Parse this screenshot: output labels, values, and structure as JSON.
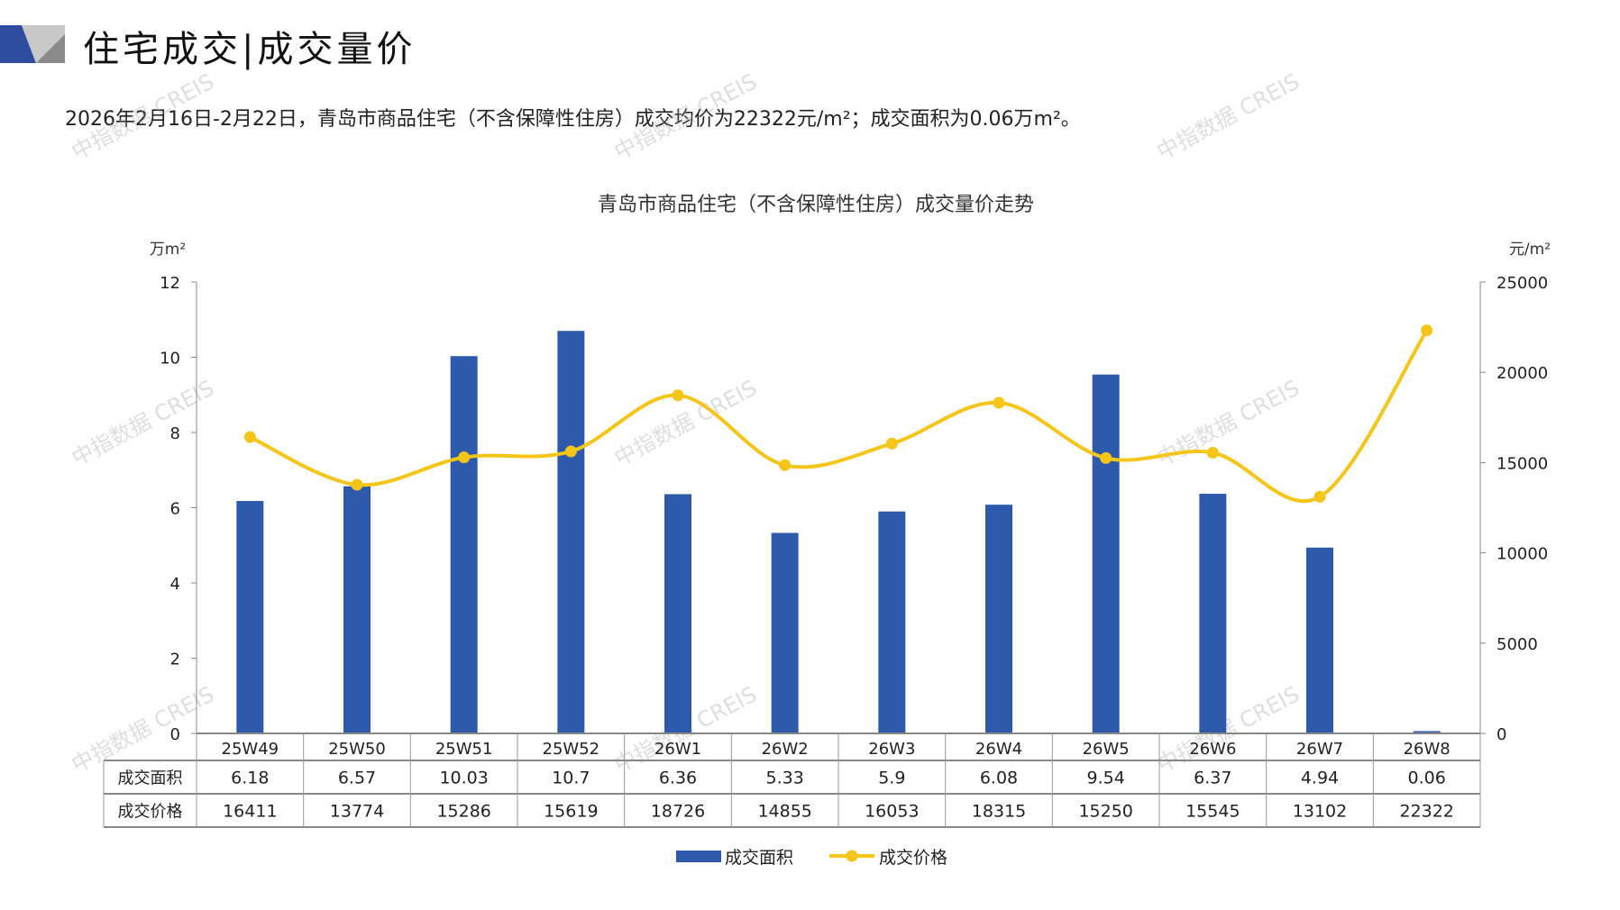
{
  "header": {
    "title": "住宅成交|成交量价",
    "summary": "2026年2月16日-2月22日，青岛市商品住宅（不含保障性住房）成交均价为22322元/m²；成交面积为0.06万m²。"
  },
  "watermark": "中指数据 CREIS",
  "colors": {
    "bar": "#2E5AAC",
    "line": "#F5C518",
    "logo_blue": "#2E4DA0",
    "logo_gray": "#9A9A9A"
  },
  "chart_data": {
    "type": "bar+line",
    "title": "青岛市商品住宅（不含保障性住房）成交量价走势",
    "categories": [
      "25W49",
      "25W50",
      "25W51",
      "25W52",
      "26W1",
      "26W2",
      "26W3",
      "26W4",
      "26W5",
      "26W6",
      "26W7",
      "26W8"
    ],
    "y_left": {
      "unit": "万m²",
      "range": [
        0,
        12
      ],
      "ticks": [
        0,
        2,
        4,
        6,
        8,
        10,
        12
      ]
    },
    "y_right": {
      "unit": "元/m²",
      "range": [
        0,
        25000
      ],
      "ticks": [
        0,
        5000,
        10000,
        15000,
        20000,
        25000
      ]
    },
    "series": [
      {
        "name": "成交面积",
        "type": "bar",
        "axis": "left",
        "values": [
          6.18,
          6.57,
          10.03,
          10.7,
          6.36,
          5.33,
          5.9,
          6.08,
          9.54,
          6.37,
          4.94,
          0.06
        ]
      },
      {
        "name": "成交价格",
        "type": "line",
        "axis": "right",
        "values": [
          16411,
          13774,
          15286,
          15619,
          18726,
          14855,
          16053,
          18315,
          15250,
          15545,
          13102,
          22322
        ]
      }
    ],
    "table": {
      "rows": [
        {
          "label": "成交面积",
          "values": [
            "6.18",
            "6.57",
            "10.03",
            "10.7",
            "6.36",
            "5.33",
            "5.9",
            "6.08",
            "9.54",
            "6.37",
            "4.94",
            "0.06"
          ]
        },
        {
          "label": "成交价格",
          "values": [
            "16411",
            "13774",
            "15286",
            "15619",
            "18726",
            "14855",
            "16053",
            "18315",
            "15250",
            "15545",
            "13102",
            "22322"
          ]
        }
      ]
    },
    "legend": {
      "position": "bottom"
    },
    "grid": false
  }
}
